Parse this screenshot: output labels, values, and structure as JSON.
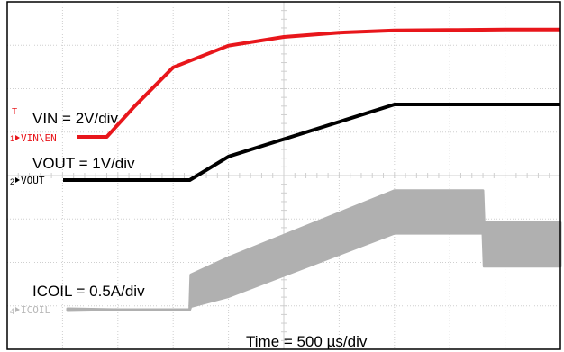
{
  "chart_data": {
    "type": "line",
    "title": "",
    "grid": true,
    "time_axis": {
      "label": "Time = 500 µs/div",
      "divisions": 10,
      "range_us": [
        0,
        5000
      ]
    },
    "vertical_divisions": 8,
    "channels": [
      {
        "id": "1",
        "name": "VIN\\EN",
        "scale_label": "VIN = 2V/div",
        "volts_per_div": 2,
        "color": "#e8161b",
        "ground_div": 2.95,
        "points_us_div": [
          [
            0,
            0
          ],
          [
            500,
            0
          ],
          [
            900,
            0
          ],
          [
            1150,
            0.7
          ],
          [
            1500,
            1.6
          ],
          [
            2000,
            2.1
          ],
          [
            2500,
            2.3
          ],
          [
            3000,
            2.4
          ],
          [
            3500,
            2.45
          ],
          [
            4000,
            2.46
          ],
          [
            4500,
            2.47
          ],
          [
            5000,
            2.47
          ]
        ]
      },
      {
        "id": "2",
        "name": "VOUT",
        "scale_label": "VOUT = 1V/div",
        "volts_per_div": 1,
        "color": "#000000",
        "ground_div": 1.98,
        "points_us_div": [
          [
            0,
            0
          ],
          [
            1000,
            0
          ],
          [
            1650,
            0
          ],
          [
            2000,
            0.54
          ],
          [
            3500,
            1.74
          ],
          [
            3800,
            1.74
          ],
          [
            5000,
            1.74
          ]
        ]
      },
      {
        "id": "4",
        "name": "ICOIL",
        "scale_label": "ICOIL = 0.5A/div",
        "amps_per_div": 0.5,
        "color": "#b0b0b0",
        "ground_div": -0.95,
        "envelope_us_div": [
          [
            0,
            0,
            0
          ],
          [
            1000,
            0,
            0
          ],
          [
            1650,
            0,
            0
          ],
          [
            1660,
            0.07,
            0.8
          ],
          [
            2000,
            0.3,
            1.2
          ],
          [
            3500,
            1.76,
            2.74
          ],
          [
            3800,
            1.76,
            2.74
          ],
          [
            4300,
            1.76,
            2.74
          ],
          [
            4310,
            1.0,
            2.0
          ],
          [
            5000,
            1.0,
            2.0
          ]
        ]
      }
    ]
  },
  "markers": {
    "trigger": "T",
    "ch1_marker": "1",
    "ch2_marker": "2",
    "ch4_marker": "4"
  }
}
